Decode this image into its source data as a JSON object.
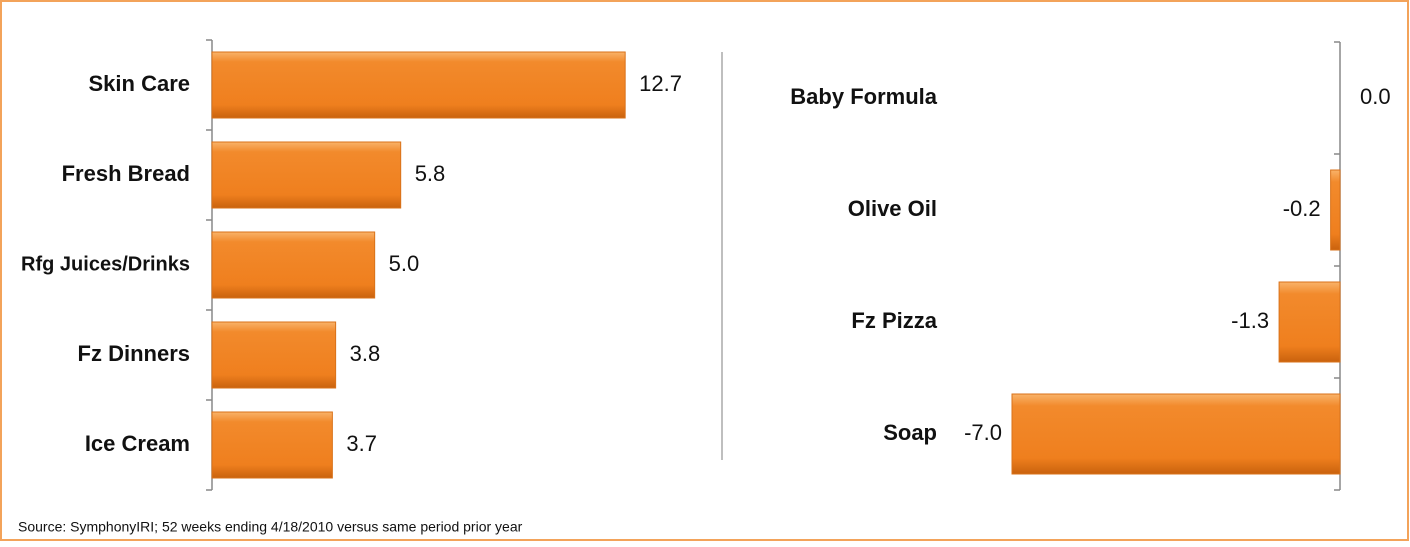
{
  "chart_data": [
    {
      "type": "bar",
      "orientation": "horizontal",
      "categories": [
        "Skin Care",
        "Fresh Bread",
        "Rfg Juices/Drinks",
        "Fz Dinners",
        "Ice Cream"
      ],
      "values": [
        12.7,
        5.8,
        5.0,
        3.8,
        3.7
      ],
      "value_labels": [
        "12.7",
        "5.8",
        "5.0",
        "3.8",
        "3.7"
      ],
      "color": "#f08424",
      "xlim": [
        0,
        15
      ]
    },
    {
      "type": "bar",
      "orientation": "horizontal",
      "categories": [
        "Baby Formula",
        "Olive Oil",
        "Fz Pizza",
        "Soap"
      ],
      "values": [
        0.0,
        -0.2,
        -1.3,
        -7.0
      ],
      "value_labels": [
        "0.0",
        "-0.2",
        "-1.3",
        "-7.0"
      ],
      "color": "#f08424",
      "xlim": [
        -7,
        0
      ]
    }
  ],
  "source": "Source:  SymphonyIRI; 52 weeks ending 4/18/2010 versus same period prior year"
}
